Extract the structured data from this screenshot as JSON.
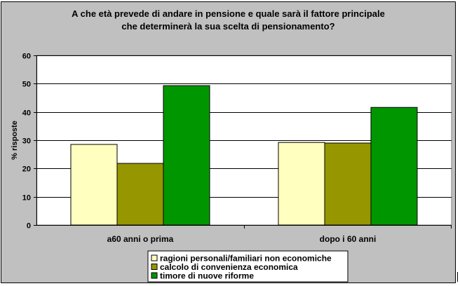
{
  "chart_data": {
    "type": "bar",
    "title_lines": [
      "A che età prevede di andare in pensione e quale sarà il fattore principale",
      "che determinerà la sua scelta di pensionamento?"
    ],
    "ylabel": "% risposte",
    "xlabel": "",
    "ylim": [
      0,
      60
    ],
    "yticks": [
      0,
      10,
      20,
      30,
      40,
      50,
      60
    ],
    "grid": true,
    "legend_position": "bottom",
    "categories": [
      "a60 anni o prima",
      "dopo i 60 anni"
    ],
    "series": [
      {
        "name": "ragioni personali/familiari non economiche",
        "color": "#ffffc0",
        "values": [
          28.5,
          29.2
        ]
      },
      {
        "name": "calcolo di convenienza economica",
        "color": "#969600",
        "values": [
          21.8,
          29.0
        ]
      },
      {
        "name": "timore di nuove riforme",
        "color": "#009600",
        "values": [
          49.3,
          41.6
        ]
      }
    ]
  }
}
